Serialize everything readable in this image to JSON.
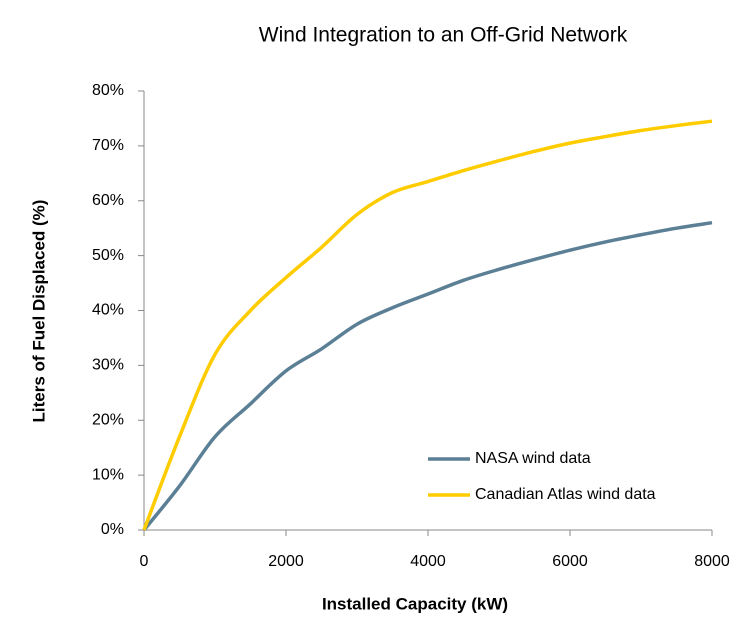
{
  "chart_data": {
    "type": "line",
    "title": "Wind Integration to an Off-Grid Network",
    "x_label": "Installed Capacity (kW)",
    "y_label": "Liters of Fuel Displaced (%)",
    "x": [
      0,
      500,
      1000,
      1500,
      2000,
      2500,
      3000,
      3500,
      4000,
      4500,
      5000,
      5500,
      6000,
      6500,
      7000,
      7500,
      8000
    ],
    "series": [
      {
        "name": "NASA wind data",
        "color": "#5b7f95",
        "values": [
          0,
          8,
          17,
          23,
          29,
          33,
          37.5,
          40.5,
          43,
          45.5,
          47.5,
          49.3,
          51,
          52.5,
          53.8,
          55,
          56
        ]
      },
      {
        "name": "Canadian Atlas wind data",
        "color": "#ffcc00",
        "values": [
          0,
          17,
          32,
          40,
          46,
          51.5,
          57.5,
          61.5,
          63.5,
          65.5,
          67.3,
          69,
          70.5,
          71.7,
          72.8,
          73.7,
          74.5
        ]
      }
    ],
    "xlim": [
      0,
      8000
    ],
    "xticks": [
      0,
      2000,
      4000,
      6000,
      8000
    ],
    "ylim": [
      0,
      80
    ],
    "yticks": [
      {
        "value": 0,
        "label": "0%"
      },
      {
        "value": 10,
        "label": "10%"
      },
      {
        "value": 20,
        "label": "20%"
      },
      {
        "value": 30,
        "label": "30%"
      },
      {
        "value": 40,
        "label": "40%"
      },
      {
        "value": 50,
        "label": "50%"
      },
      {
        "value": 60,
        "label": "60%"
      },
      {
        "value": 70,
        "label": "70%"
      },
      {
        "value": 80,
        "label": "80%"
      }
    ],
    "grid": false,
    "legend": "lower right"
  }
}
